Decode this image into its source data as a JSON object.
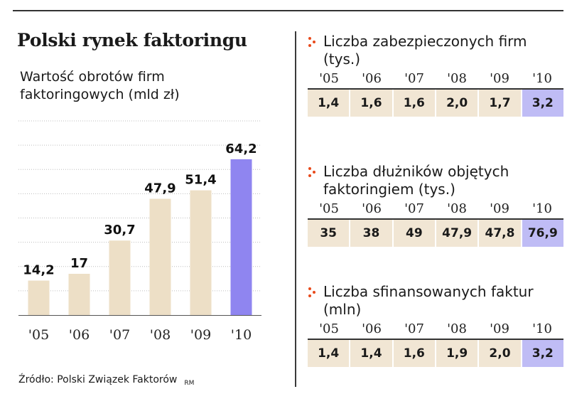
{
  "title": "Polski rynek faktoringu",
  "subtitle": "Wartość obrotów firm faktoringowych (mld zł)",
  "source": "Źródło: Polski Związek Faktorów",
  "initials": "RM",
  "colors": {
    "bar": "#eddfc6",
    "highlight": "#8f85f0",
    "cell": "#f1e6d4",
    "cell_highlight": "#bfbcf5",
    "icon": "#e84a1b"
  },
  "chart_data": [
    {
      "type": "bar",
      "title": "Wartość obrotów firm faktoringowych (mld zł)",
      "categories": [
        "'05",
        "'06",
        "'07",
        "'08",
        "'09",
        "'10"
      ],
      "values": [
        14.2,
        17,
        30.7,
        47.9,
        51.4,
        64.2
      ],
      "value_labels": [
        "14,2",
        "17",
        "30,7",
        "47,9",
        "51,4",
        "64,2"
      ],
      "highlight_index": 5,
      "ylim": [
        0,
        80
      ],
      "grid": true
    },
    {
      "type": "table",
      "title": "Liczba zabezpieczonych firm (tys.)",
      "categories": [
        "'05",
        "'06",
        "'07",
        "'08",
        "'09",
        "'10"
      ],
      "values": [
        "1,4",
        "1,6",
        "1,6",
        "2,0",
        "1,7",
        "3,2"
      ]
    },
    {
      "type": "table",
      "title": "Liczba dłużników objętych faktoringiem (tys.)",
      "categories": [
        "'05",
        "'06",
        "'07",
        "'08",
        "'09",
        "'10"
      ],
      "values": [
        "35",
        "38",
        "49",
        "47,9",
        "47,8",
        "76,9"
      ]
    },
    {
      "type": "table",
      "title": "Liczba sfinansowanych faktur (mln)",
      "categories": [
        "'05",
        "'06",
        "'07",
        "'08",
        "'09",
        "'10"
      ],
      "values": [
        "1,4",
        "1,4",
        "1,6",
        "1,9",
        "2,0",
        "3,2"
      ]
    }
  ]
}
